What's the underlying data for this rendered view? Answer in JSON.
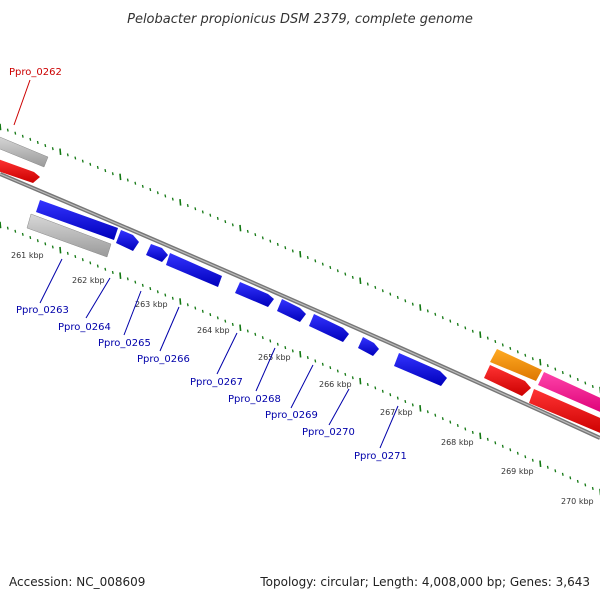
{
  "title": "Pelobacter propionicus DSM 2379, complete genome",
  "footer": {
    "accession": "Accession: NC_008609",
    "summary": "Topology: circular; Length: 4,008,000 bp; Genes: 3,643"
  },
  "colors": {
    "plus_strand_gene": "#0000ee",
    "highlight_gene": "#cc0000",
    "label_default": "#0000aa",
    "label_highlight": "#cc0000",
    "pseudo_gene": "#b0b0b0",
    "red_feature": "#ff0000",
    "orange_feature": "#ff9900",
    "magenta_feature": "#ff2299",
    "backbone": "#888888",
    "tick": "#117711"
  },
  "tick_labels": [
    "261 kbp",
    "262 kbp",
    "263 kbp",
    "264 kbp",
    "265 kbp",
    "266 kbp",
    "267 kbp",
    "268 kbp",
    "269 kbp",
    "270 kbp"
  ],
  "genes": [
    {
      "name": "Ppro_0262",
      "highlight": true
    },
    {
      "name": "Ppro_0263",
      "highlight": false
    },
    {
      "name": "Ppro_0264",
      "highlight": false
    },
    {
      "name": "Ppro_0265",
      "highlight": false
    },
    {
      "name": "Ppro_0266",
      "highlight": false
    },
    {
      "name": "Ppro_0267",
      "highlight": false
    },
    {
      "name": "Ppro_0268",
      "highlight": false
    },
    {
      "name": "Ppro_0269",
      "highlight": false
    },
    {
      "name": "Ppro_0270",
      "highlight": false
    },
    {
      "name": "Ppro_0271",
      "highlight": false
    }
  ]
}
